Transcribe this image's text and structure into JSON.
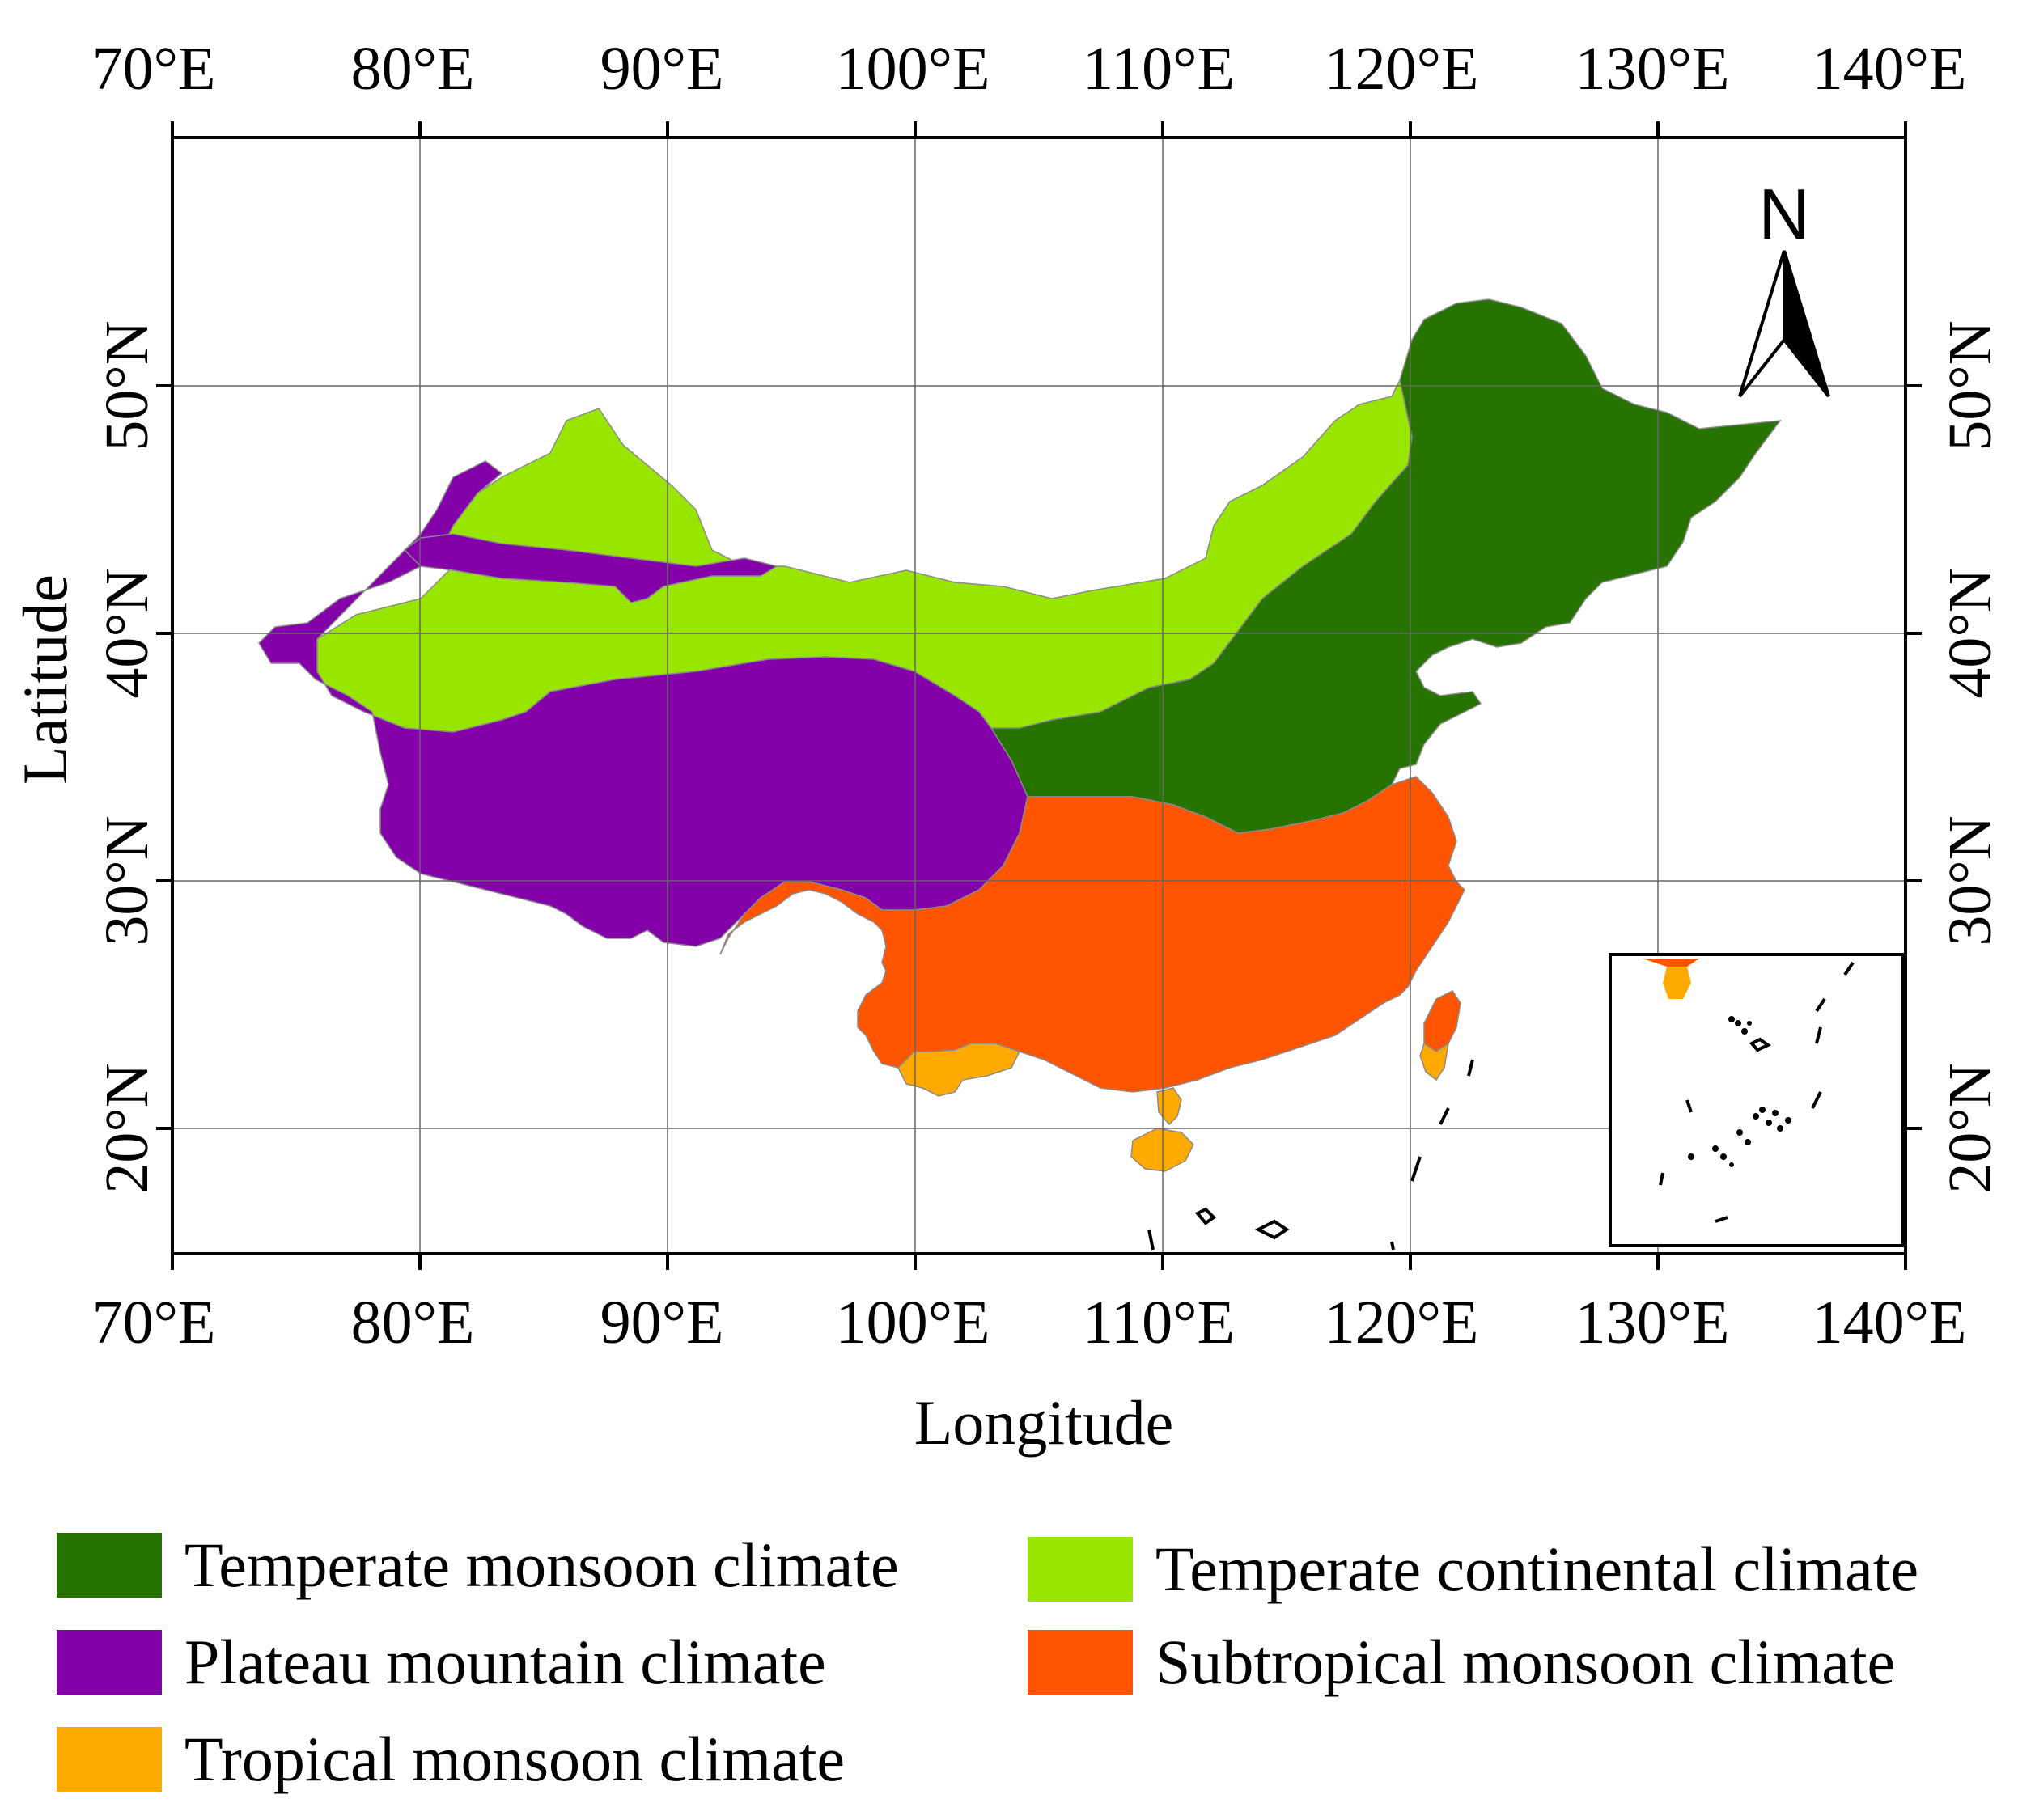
{
  "map": {
    "x_ticks": [
      "70°E",
      "80°E",
      "90°E",
      "100°E",
      "110°E",
      "120°E",
      "130°E",
      "140°E"
    ],
    "y_ticks": [
      "20°N",
      "30°N",
      "40°N",
      "50°N"
    ],
    "xlabel": "Longitude",
    "ylabel": "Latitude",
    "north_arrow_label": "N",
    "colors": {
      "temperate_monsoon": "#267300",
      "temperate_continental": "#98e600",
      "plateau_mountain": "#8400a8",
      "subtropical_monsoon": "#ff5500",
      "tropical_monsoon": "#ffaa00"
    }
  },
  "legend": [
    {
      "label": "Temperate monsoon climate",
      "color": "#267300"
    },
    {
      "label": "Temperate continental climate",
      "color": "#98e600"
    },
    {
      "label": "Plateau mountain climate",
      "color": "#8400a8"
    },
    {
      "label": "Subtropical monsoon climate",
      "color": "#ff5500"
    },
    {
      "label": "Tropical monsoon climate",
      "color": "#ffaa00"
    }
  ]
}
